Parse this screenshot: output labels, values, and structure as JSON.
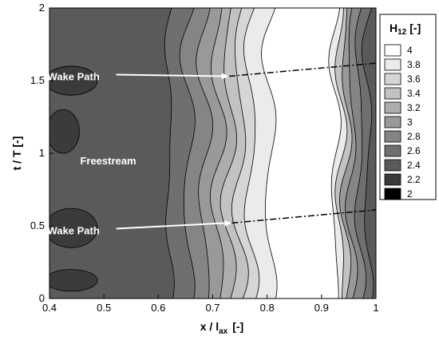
{
  "chart_data": {
    "type": "heatmap",
    "xlabel": "x / l",
    "xlabel_sub": "ax",
    "xlabel_unit": "[-]",
    "ylabel": "t / T  [-]",
    "xlim": [
      0.4,
      1.0
    ],
    "ylim": [
      0,
      2
    ],
    "xticks": [
      "0.4",
      "0.5",
      "0.6",
      "0.7",
      "0.8",
      "0.9",
      "1"
    ],
    "yticks": [
      "0",
      "0.5",
      "1",
      "1.5",
      "2"
    ],
    "legend": {
      "title_main": "H",
      "title_sub": "12",
      "title_unit": "[-]",
      "levels": [
        "4",
        "3.8",
        "3.6",
        "3.4",
        "3.2",
        "3",
        "2.8",
        "2.6",
        "2.4",
        "2.2",
        "2"
      ],
      "colors": [
        "#ffffff",
        "#ebebeb",
        "#d6d6d6",
        "#c2c2c2",
        "#adadad",
        "#999999",
        "#858585",
        "#6f6f6f",
        "#5a5a5a",
        "#3b3b3b",
        "#000000"
      ],
      "placement": "right"
    },
    "annotations": [
      {
        "text": "Wake Path",
        "x": 0.37,
        "y": 1.53,
        "arrow_to_x": 0.73,
        "arrow_to_y": 1.53
      },
      {
        "text": "Freestream",
        "x": 0.43,
        "y": 0.95
      },
      {
        "text": "Wake Path",
        "x": 0.37,
        "y": 0.47,
        "arrow_to_x": 0.735,
        "arrow_to_y": 0.52
      }
    ],
    "wake_lines": [
      {
        "x": [
          0.73,
          1.0
        ],
        "y": [
          1.53,
          1.62
        ]
      },
      {
        "x": [
          0.735,
          1.0
        ],
        "y": [
          0.52,
          0.61
        ]
      }
    ],
    "contour_bands": [
      {
        "level": "2.4",
        "x_left": 0.4,
        "x_right": 0.62
      },
      {
        "level": "2.6",
        "x_left": 0.62,
        "x_right": 0.655
      },
      {
        "level": "2.8",
        "x_left": 0.655,
        "x_right": 0.685
      },
      {
        "level": "3",
        "x_left": 0.685,
        "x_right": 0.71
      },
      {
        "level": "3.2",
        "x_left": 0.71,
        "x_right": 0.73
      },
      {
        "level": "3.4",
        "x_left": 0.73,
        "x_right": 0.75
      },
      {
        "level": "3.6",
        "x_left": 0.75,
        "x_right": 0.77
      },
      {
        "level": "3.8",
        "x_left": 0.77,
        "x_right": 0.805
      },
      {
        "level": "4",
        "x_left": 0.805,
        "x_right": 0.925
      },
      {
        "level": "3.8",
        "x_left": 0.925,
        "x_right": 0.935
      },
      {
        "level": "3.4",
        "x_left": 0.935,
        "x_right": 0.945
      },
      {
        "level": "3",
        "x_left": 0.945,
        "x_right": 0.955
      },
      {
        "level": "2.8",
        "x_left": 0.955,
        "x_right": 0.97
      },
      {
        "level": "2.6",
        "x_left": 0.97,
        "x_right": 0.985
      },
      {
        "level": "2.4",
        "x_left": 0.985,
        "x_right": 1.0
      }
    ],
    "dark_pockets": [
      {
        "level": "2.2",
        "x": [
          0.4,
          0.48
        ],
        "y": [
          1.4,
          1.6
        ]
      },
      {
        "level": "2.2",
        "x": [
          0.4,
          0.48
        ],
        "y": [
          0.35,
          0.62
        ]
      },
      {
        "level": "2.2",
        "x": [
          0.4,
          0.45
        ],
        "y": [
          1.0,
          1.3
        ]
      },
      {
        "level": "2.2",
        "x": [
          0.4,
          0.48
        ],
        "y": [
          0.05,
          0.2
        ]
      }
    ]
  }
}
